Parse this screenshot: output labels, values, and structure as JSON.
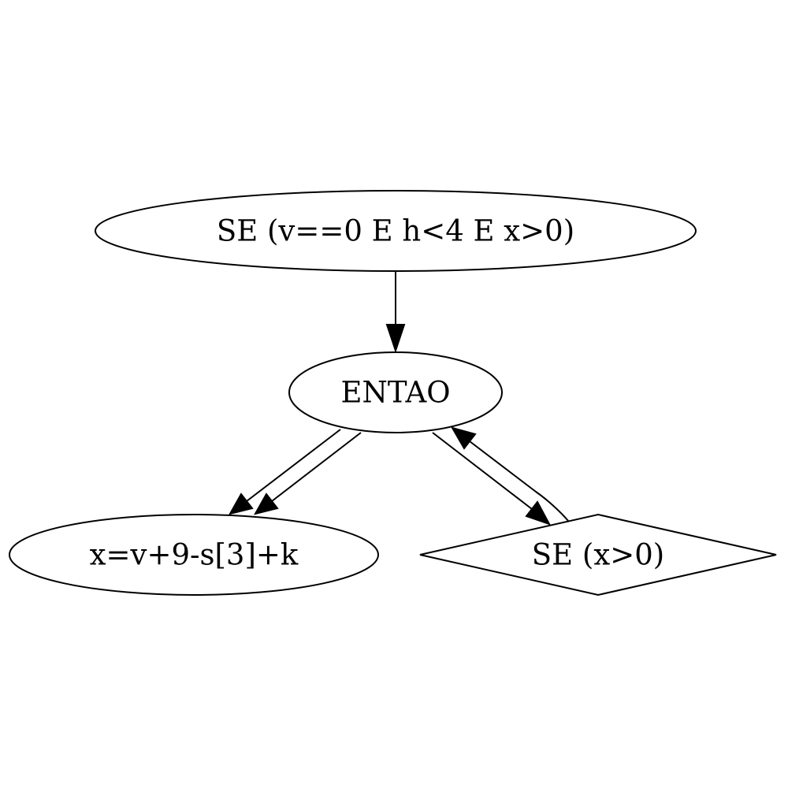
{
  "nodes": {
    "root": {
      "label": "SE (v==0 E h<4 E x>0)",
      "shape": "ellipse"
    },
    "then": {
      "label": "ENTAO",
      "shape": "ellipse"
    },
    "assign": {
      "label": "x=v+9-s[3]+k",
      "shape": "ellipse"
    },
    "cond": {
      "label": "SE (x>0)",
      "shape": "diamond"
    }
  },
  "edges": [
    {
      "from": "root",
      "to": "then"
    },
    {
      "from": "then",
      "to": "assign"
    },
    {
      "from": "then",
      "to": "assign"
    },
    {
      "from": "then",
      "to": "cond"
    },
    {
      "from": "cond",
      "to": "then"
    }
  ],
  "colors": {
    "stroke": "#000000",
    "fill": "#ffffff",
    "background": "#ffffff"
  }
}
